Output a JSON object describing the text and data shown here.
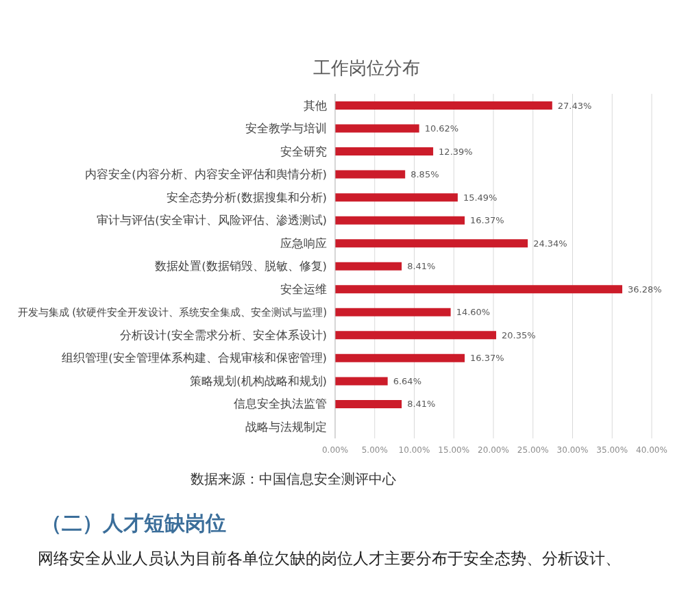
{
  "chart_data": {
    "type": "bar",
    "orientation": "horizontal",
    "title": "工作岗位分布",
    "categories": [
      "其他",
      "安全教学与培训",
      "安全研究",
      "内容安全(内容分析、内容安全评估和舆情分析)",
      "安全态势分析(数据搜集和分析)",
      "审计与评估(安全审计、风险评估、渗透测试)",
      "应急响应",
      "数据处置(数据销毁、脱敏、修复)",
      "安全运维",
      "开发与集成 (软硬件安全开发设计、系统安全集成、安全测试与监理)",
      "分析设计(安全需求分析、安全体系设计)",
      "组织管理(安全管理体系构建、合规审核和保密管理)",
      "策略规划(机构战略和规划)",
      "信息安全执法监管",
      "战略与法规制定"
    ],
    "values": [
      27.43,
      10.62,
      12.39,
      8.85,
      15.49,
      16.37,
      24.34,
      8.41,
      36.28,
      14.6,
      20.35,
      16.37,
      6.64,
      8.41,
      null
    ],
    "value_labels": [
      "27.43%",
      "10.62%",
      "12.39%",
      "8.85%",
      "15.49%",
      "16.37%",
      "24.34%",
      "8.41%",
      "36.28%",
      "14.60%",
      "20.35%",
      "16.37%",
      "6.64%",
      "8.41%",
      null
    ],
    "color": "#cc1c2a",
    "xlim": [
      0,
      40
    ],
    "xticks": [
      {
        "value": 0,
        "label": "0.00%"
      },
      {
        "value": 5,
        "label": "5.00%"
      },
      {
        "value": 10,
        "label": "10.00%"
      },
      {
        "value": 15,
        "label": "15.00%"
      },
      {
        "value": 20,
        "label": "20.00%"
      },
      {
        "value": 25,
        "label": "25.00%"
      },
      {
        "value": 30,
        "label": "30.00%"
      },
      {
        "value": 35,
        "label": "35.00%"
      },
      {
        "value": 40,
        "label": "40.00%"
      }
    ],
    "grid": "x",
    "annotations": [
      "数据来源：中国信息安全测评中心",
      "（二）人才短缺岗位",
      "网络安全从业人员认为目前各单位欠缺的岗位人才主要分布于安全态势、分析设计、"
    ]
  }
}
